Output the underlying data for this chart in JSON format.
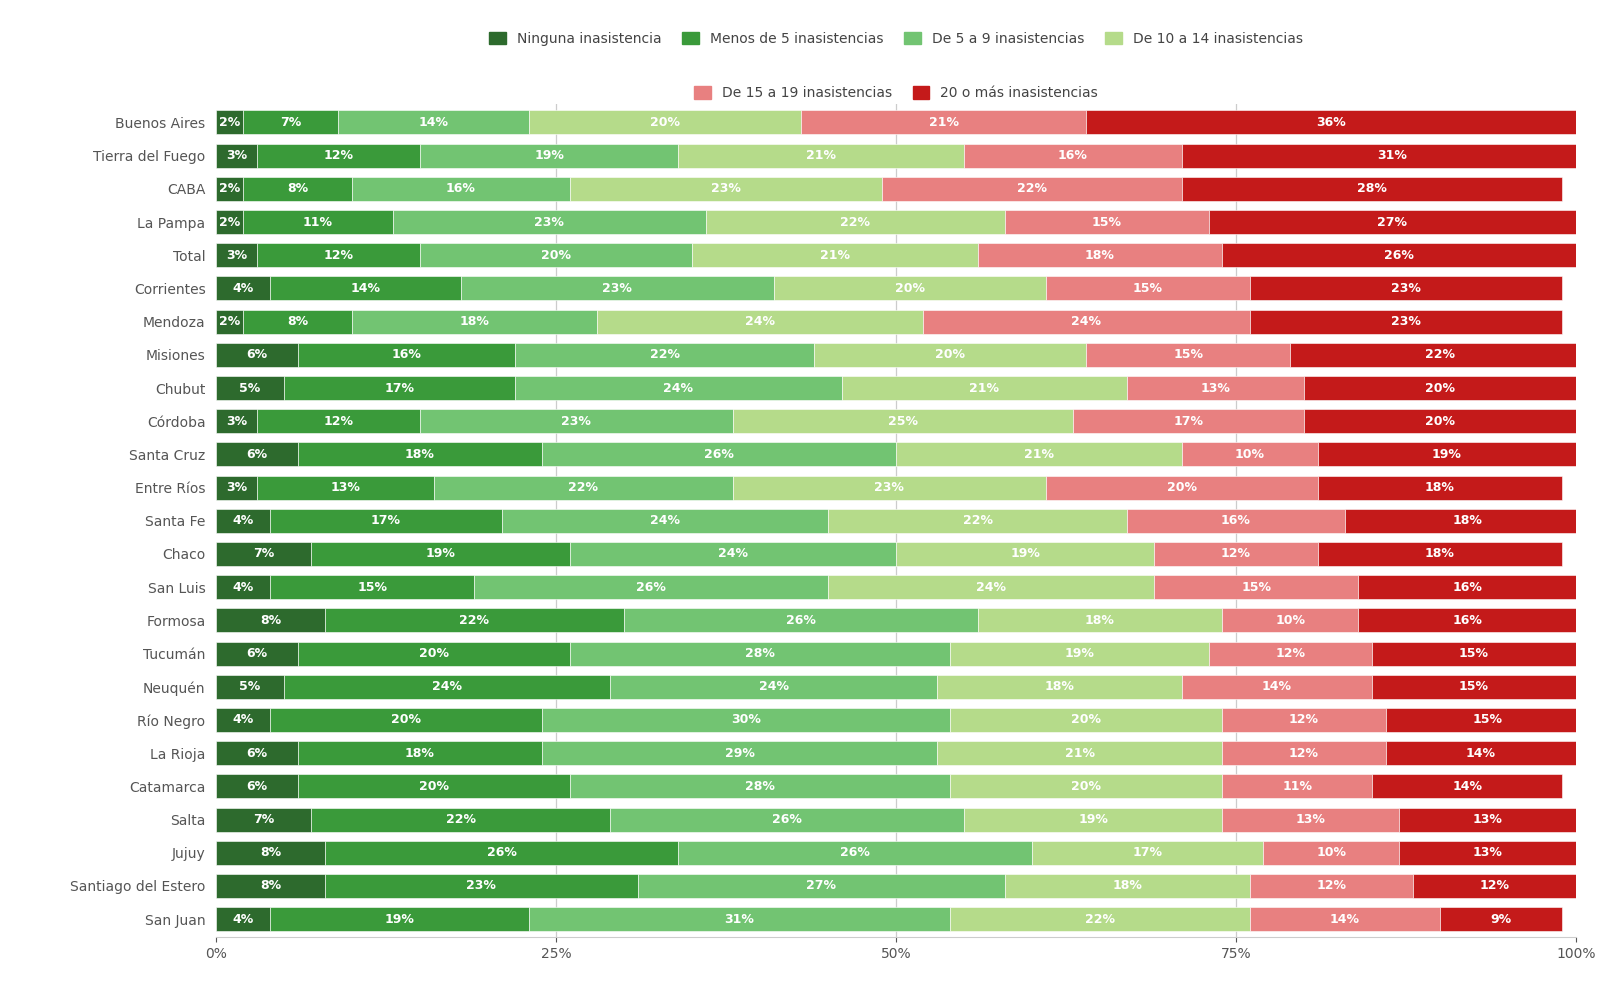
{
  "provinces": [
    "Buenos Aires",
    "Tierra del Fuego",
    "CABA",
    "La Pampa",
    "Total",
    "Corrientes",
    "Mendoza",
    "Misiones",
    "Chubut",
    "Córdoba",
    "Santa Cruz",
    "Entre Ríos",
    "Santa Fe",
    "Chaco",
    "San Luis",
    "Formosa",
    "Tucumán",
    "Neuquén",
    "Río Negro",
    "La Rioja",
    "Catamarca",
    "Salta",
    "Jujuy",
    "Santiago del Estero",
    "San Juan"
  ],
  "data": [
    [
      2,
      7,
      14,
      20,
      21,
      36
    ],
    [
      3,
      12,
      19,
      21,
      16,
      31
    ],
    [
      2,
      8,
      16,
      23,
      22,
      28
    ],
    [
      2,
      11,
      23,
      22,
      15,
      27
    ],
    [
      3,
      12,
      20,
      21,
      18,
      26
    ],
    [
      4,
      14,
      23,
      20,
      15,
      23
    ],
    [
      2,
      8,
      18,
      24,
      24,
      23
    ],
    [
      6,
      16,
      22,
      20,
      15,
      22
    ],
    [
      5,
      17,
      24,
      21,
      13,
      20
    ],
    [
      3,
      12,
      23,
      25,
      17,
      20
    ],
    [
      6,
      18,
      26,
      21,
      10,
      19
    ],
    [
      3,
      13,
      22,
      23,
      20,
      18
    ],
    [
      4,
      17,
      24,
      22,
      16,
      18
    ],
    [
      7,
      19,
      24,
      19,
      12,
      18
    ],
    [
      4,
      15,
      26,
      24,
      15,
      16
    ],
    [
      8,
      22,
      26,
      18,
      10,
      16
    ],
    [
      6,
      20,
      28,
      19,
      12,
      15
    ],
    [
      5,
      24,
      24,
      18,
      14,
      15
    ],
    [
      4,
      20,
      30,
      20,
      12,
      15
    ],
    [
      6,
      18,
      29,
      21,
      12,
      14
    ],
    [
      6,
      20,
      28,
      20,
      11,
      14
    ],
    [
      7,
      22,
      26,
      19,
      13,
      13
    ],
    [
      8,
      26,
      26,
      17,
      10,
      13
    ],
    [
      8,
      23,
      27,
      18,
      12,
      12
    ],
    [
      4,
      19,
      31,
      22,
      14,
      9
    ]
  ],
  "colors": [
    "#2d6a2d",
    "#3a9a3a",
    "#72c472",
    "#b5db8a",
    "#e88080",
    "#c41a1a"
  ],
  "labels": [
    "Ninguna inasistencia",
    "Menos de 5 inasistencias",
    "De 5 a 9 inasistencias",
    "De 10 a 14 inasistencias",
    "De 15 a 19 inasistencias",
    "20 o más inasistencias"
  ],
  "background_color": "#ffffff",
  "bar_height": 0.72,
  "label_fontsize": 9,
  "legend_fontsize": 10,
  "tick_fontsize": 10,
  "yticklabel_color": "#555555",
  "xticklabel_color": "#555555",
  "grid_color": "#cccccc",
  "min_label_pct": 2
}
